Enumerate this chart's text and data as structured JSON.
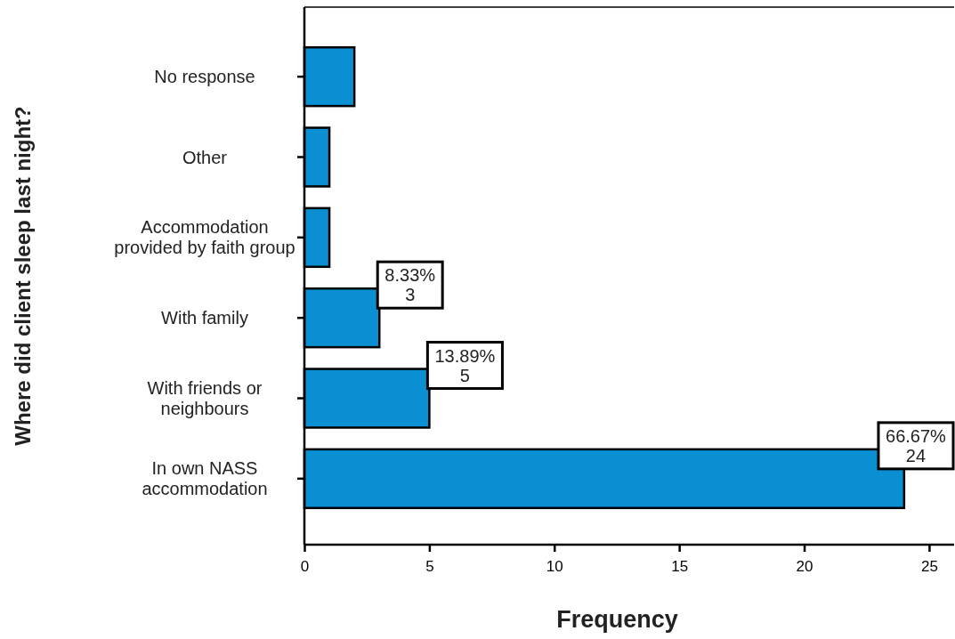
{
  "chart_data": {
    "type": "bar",
    "orientation": "horizontal",
    "xlabel": "Frequency",
    "ylabel": "Where did client sleep last night?",
    "categories": [
      "No response",
      "Other",
      "Accommodation\nprovided by faith group",
      "With family",
      "With friends or\nneighbours",
      "In own NASS\naccommodation"
    ],
    "values": [
      2,
      1,
      1,
      3,
      5,
      24
    ],
    "value_labels": [
      null,
      null,
      null,
      "8.33%\n3",
      "13.89%\n5",
      "66.67%\n24"
    ],
    "color": "#0a8fd2",
    "xlim": [
      0,
      26
    ],
    "xticks": [
      0,
      5,
      10,
      15,
      20,
      25
    ],
    "grid": false
  }
}
